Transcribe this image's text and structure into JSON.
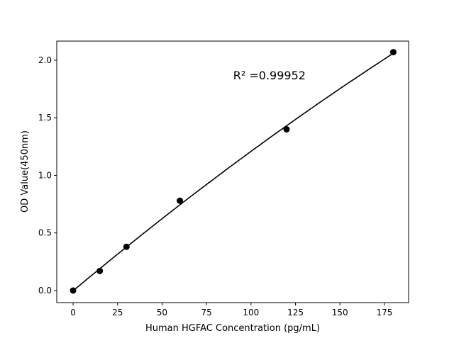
{
  "chart_data": {
    "type": "scatter",
    "title": "",
    "xlabel": "Human HGFAC Concentration (pg/mL)",
    "ylabel": "OD Value(450nm)",
    "xlim": [
      -9.2,
      188.6
    ],
    "ylim": [
      -0.105,
      2.166
    ],
    "xticks": [
      0,
      25,
      50,
      75,
      100,
      125,
      150,
      175
    ],
    "yticks": [
      0.0,
      0.5,
      1.0,
      1.5,
      2.0
    ],
    "ytick_labels": [
      "0.0",
      "0.5",
      "1.0",
      "1.5",
      "2.0"
    ],
    "grid": false,
    "points": {
      "x": [
        0,
        15,
        30,
        60,
        120,
        180
      ],
      "y": [
        0.0,
        0.17,
        0.38,
        0.78,
        1.4,
        2.07
      ]
    },
    "fit_line": true,
    "annotation": {
      "text": "R² =0.99952",
      "x": 90,
      "y": 1.87
    },
    "colors": {
      "points": "#000000",
      "line": "#000000"
    }
  }
}
